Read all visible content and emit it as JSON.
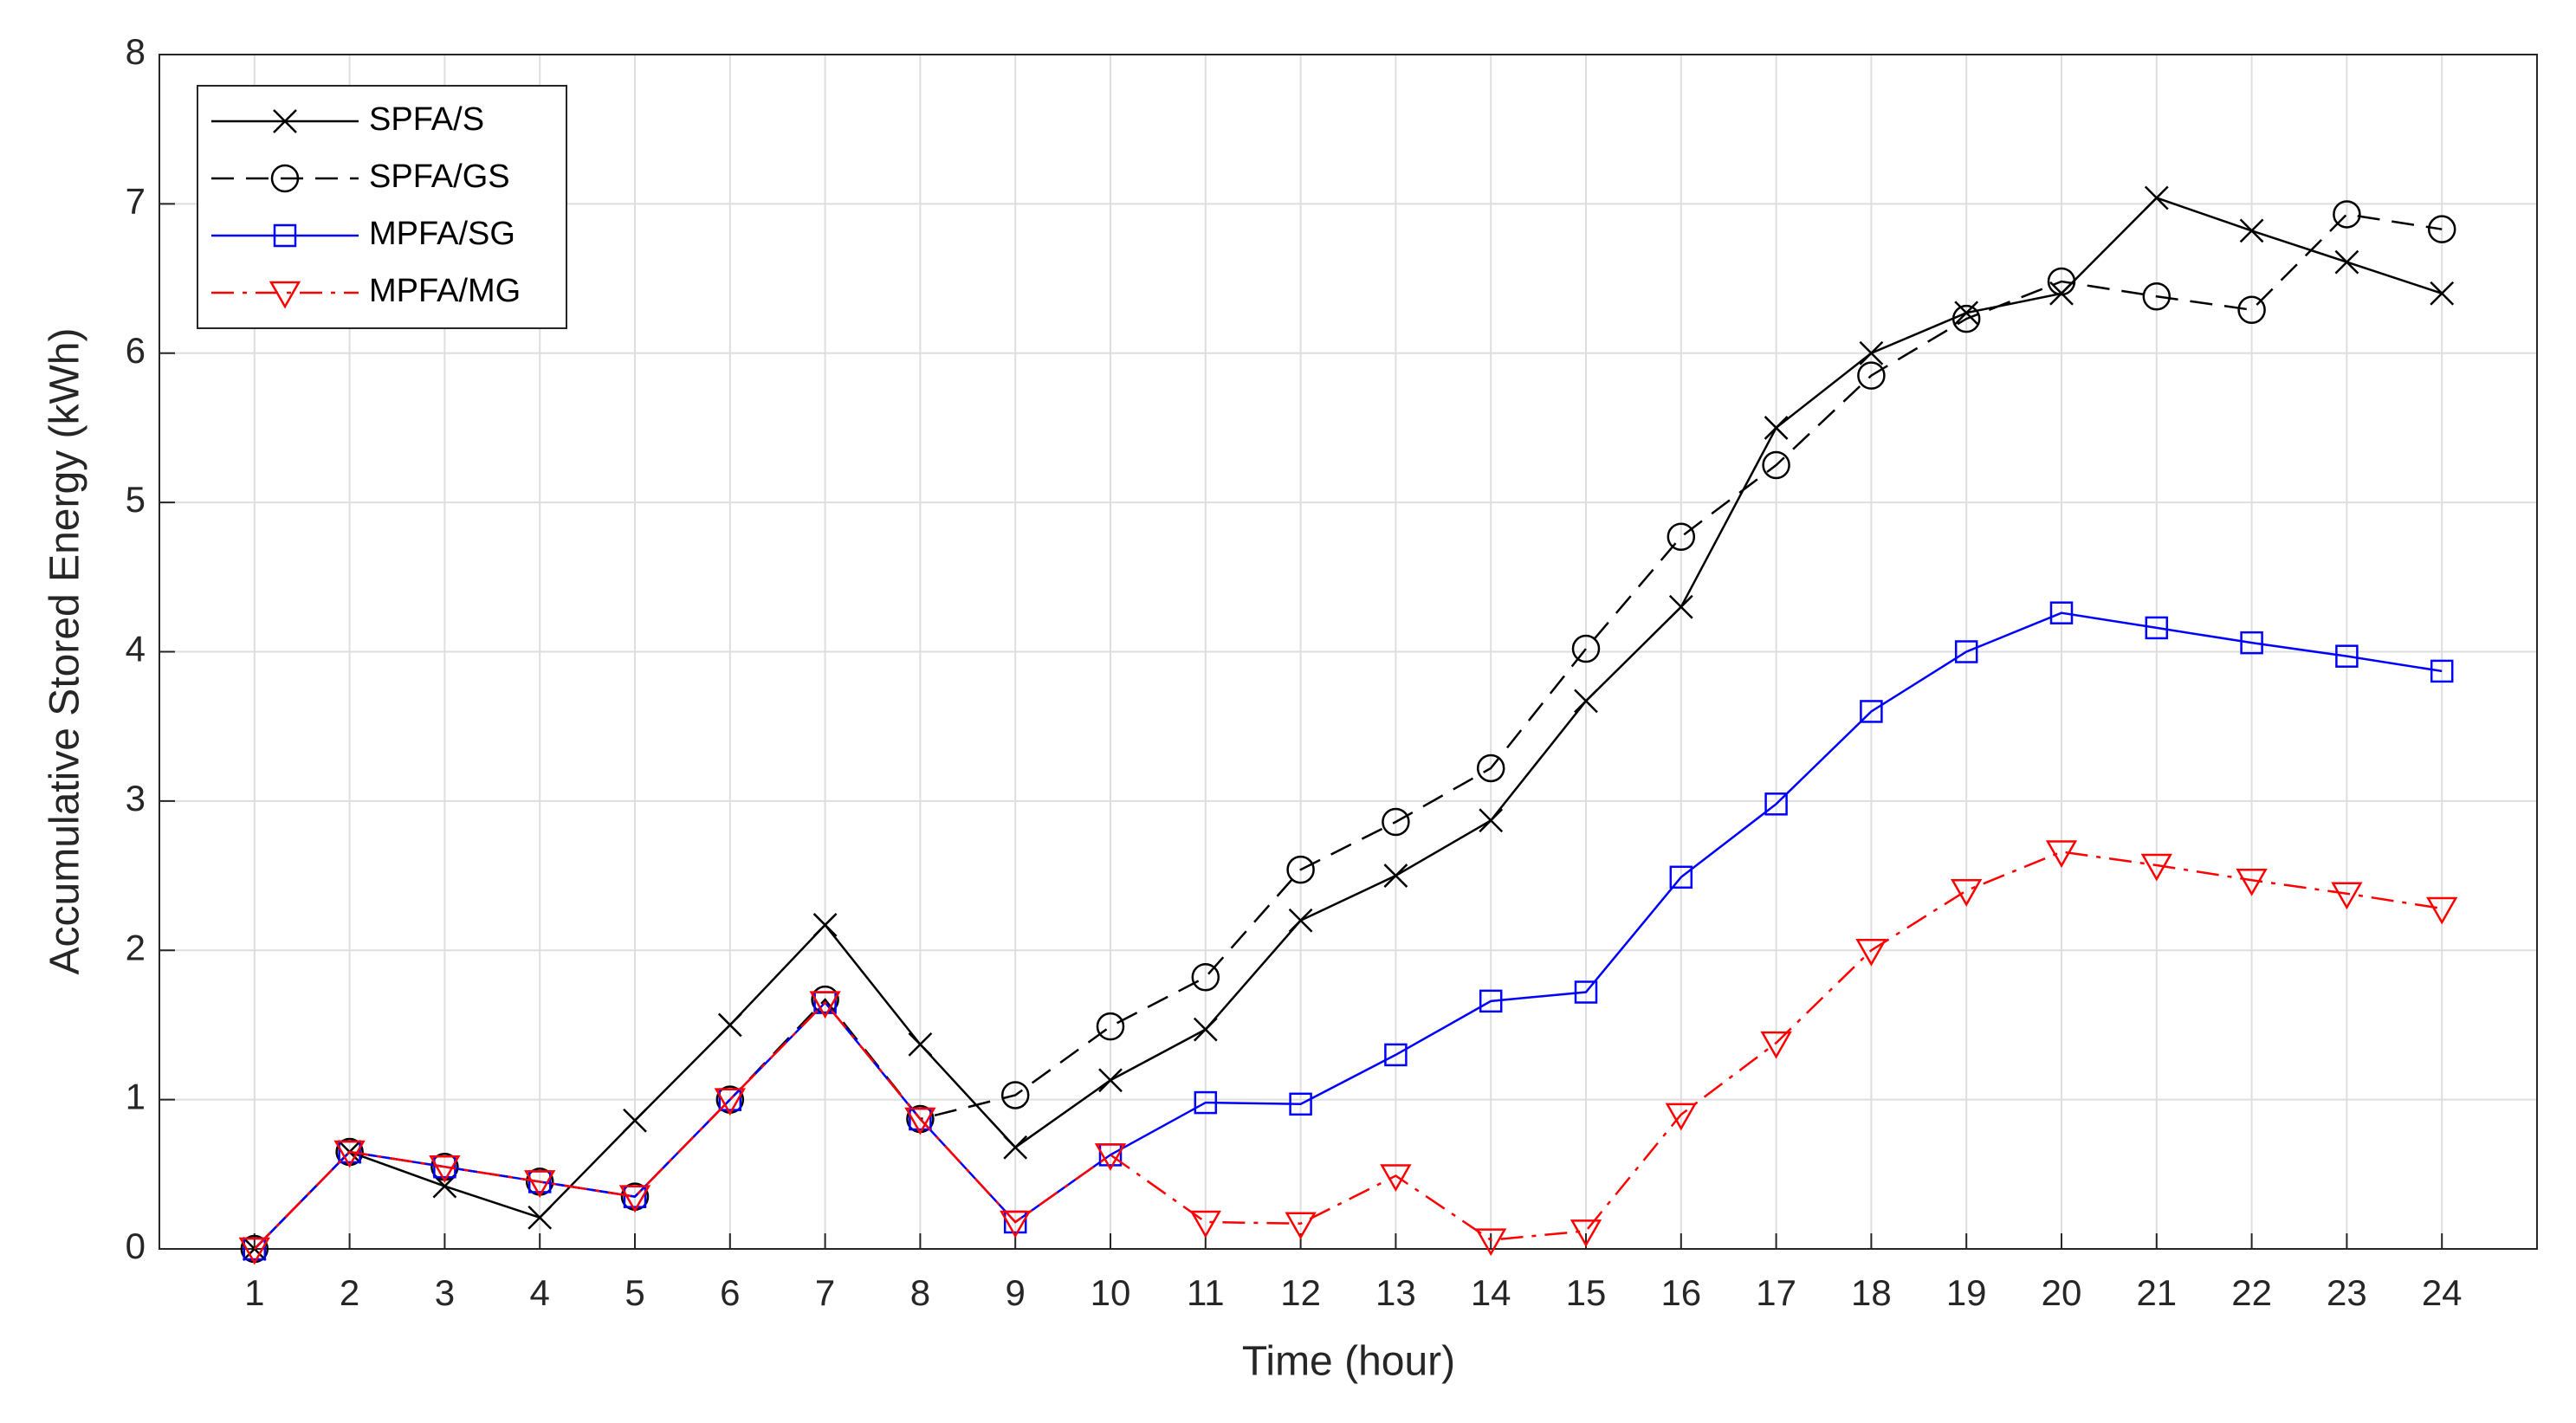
{
  "chart_data": {
    "type": "line",
    "x_label": "Time (hour)",
    "y_label": "Accumulative Stored Energy (kWh)",
    "x": [
      1,
      2,
      3,
      4,
      5,
      6,
      7,
      8,
      9,
      10,
      11,
      12,
      13,
      14,
      15,
      16,
      17,
      18,
      19,
      20,
      21,
      22,
      23,
      24
    ],
    "xlim": [
      0,
      25
    ],
    "xticks": [
      1,
      2,
      3,
      4,
      5,
      6,
      7,
      8,
      9,
      10,
      11,
      12,
      13,
      14,
      15,
      16,
      17,
      18,
      19,
      20,
      21,
      22,
      23,
      24
    ],
    "ylim": [
      0,
      8
    ],
    "yticks": [
      0,
      1,
      2,
      3,
      4,
      5,
      6,
      7,
      8
    ],
    "grid": true,
    "legend_position": "northwest",
    "series": [
      {
        "name": "SPFA/S",
        "color": "#000000",
        "marker": "x",
        "dash": "solid",
        "values": [
          0,
          0.65,
          0.42,
          0.21,
          0.86,
          1.5,
          2.17,
          1.37,
          0.68,
          1.13,
          1.47,
          2.2,
          2.5,
          2.87,
          3.67,
          4.3,
          5.5,
          6.0,
          6.27,
          6.4,
          7.04,
          6.82,
          6.61,
          6.4
        ]
      },
      {
        "name": "SPFA/GS",
        "color": "#000000",
        "marker": "o",
        "dash": "dashed",
        "values": [
          0,
          0.65,
          0.55,
          0.45,
          0.35,
          1.0,
          1.67,
          0.87,
          1.03,
          1.49,
          1.82,
          2.54,
          2.86,
          3.22,
          4.02,
          4.77,
          5.25,
          5.85,
          6.23,
          6.48,
          6.38,
          6.29,
          6.93,
          6.83
        ]
      },
      {
        "name": "MPFA/SG",
        "color": "#0000ff",
        "marker": "s",
        "dash": "solid",
        "values": [
          0,
          0.65,
          0.55,
          0.45,
          0.35,
          1.0,
          1.65,
          0.87,
          0.18,
          0.63,
          0.98,
          0.97,
          1.3,
          1.66,
          1.72,
          2.49,
          2.98,
          3.6,
          4.0,
          4.26,
          4.16,
          4.06,
          3.97,
          3.87
        ]
      },
      {
        "name": "MPFA/MG",
        "color": "#ff0000",
        "marker": "v",
        "dash": "dashdot",
        "values": [
          0,
          0.65,
          0.55,
          0.45,
          0.35,
          1.0,
          1.65,
          0.87,
          0.18,
          0.63,
          0.18,
          0.17,
          0.49,
          0.06,
          0.12,
          0.9,
          1.38,
          2.0,
          2.4,
          2.66,
          2.57,
          2.47,
          2.38,
          2.28
        ]
      }
    ]
  }
}
